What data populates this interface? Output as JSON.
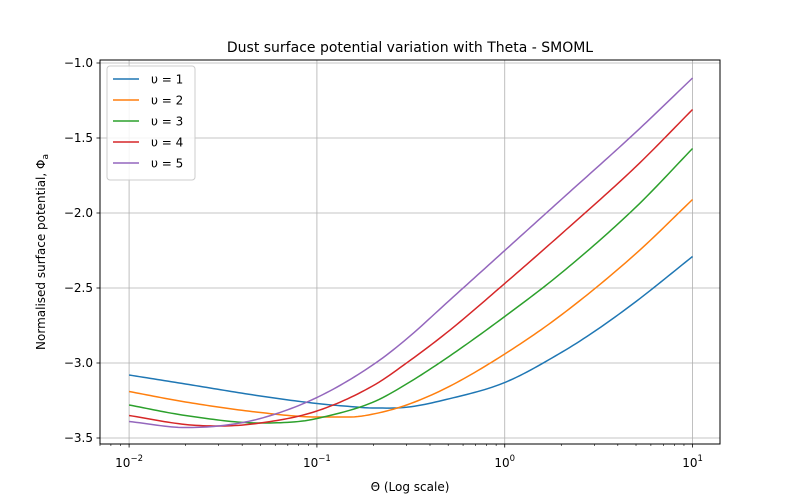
{
  "chart_data": {
    "type": "line",
    "title": "Dust surface potential variation with Theta - SMOML",
    "xlabel": "Θ (Log scale)",
    "ylabel": "Normalised surface potential, Φ",
    "ylabel_subscript": "a",
    "xscale": "log",
    "xlim": [
      0.007,
      14
    ],
    "ylim": [
      -3.54,
      -0.98
    ],
    "xticks": [
      {
        "value": 0.01,
        "base": "10",
        "exp": "−2"
      },
      {
        "value": 0.1,
        "base": "10",
        "exp": "−1"
      },
      {
        "value": 1,
        "base": "10",
        "exp": "0"
      },
      {
        "value": 10,
        "base": "10",
        "exp": "1"
      }
    ],
    "yticks": [
      -3.5,
      -3.0,
      -2.5,
      -2.0,
      -1.5,
      -1.0
    ],
    "ytick_labels": [
      "−3.5",
      "−3.0",
      "−2.5",
      "−2.0",
      "−1.5",
      "−1.0"
    ],
    "grid": true,
    "legend_position": "top-left",
    "series": [
      {
        "name": "υ = 1",
        "color": "#1f77b4",
        "x": [
          0.01,
          0.02,
          0.05,
          0.1,
          0.15,
          0.2,
          0.3,
          0.5,
          1,
          2,
          3,
          5,
          10
        ],
        "y": [
          -3.08,
          -3.14,
          -3.22,
          -3.27,
          -3.29,
          -3.3,
          -3.295,
          -3.24,
          -3.13,
          -2.93,
          -2.79,
          -2.59,
          -2.29
        ]
      },
      {
        "name": "υ = 2",
        "color": "#ff7f0e",
        "x": [
          0.01,
          0.02,
          0.05,
          0.1,
          0.15,
          0.2,
          0.3,
          0.5,
          1,
          2,
          5,
          10
        ],
        "y": [
          -3.19,
          -3.26,
          -3.33,
          -3.36,
          -3.36,
          -3.34,
          -3.28,
          -3.16,
          -2.94,
          -2.68,
          -2.27,
          -1.91
        ]
      },
      {
        "name": "υ = 3",
        "color": "#2ca02c",
        "x": [
          0.01,
          0.02,
          0.05,
          0.08,
          0.1,
          0.2,
          0.3,
          0.5,
          1,
          2,
          5,
          10
        ],
        "y": [
          -3.28,
          -3.35,
          -3.4,
          -3.39,
          -3.37,
          -3.26,
          -3.14,
          -2.96,
          -2.69,
          -2.4,
          -1.96,
          -1.57
        ]
      },
      {
        "name": "υ = 4",
        "color": "#d62728",
        "x": [
          0.01,
          0.02,
          0.03,
          0.05,
          0.1,
          0.2,
          0.3,
          0.5,
          1,
          2,
          5,
          10
        ],
        "y": [
          -3.35,
          -3.41,
          -3.42,
          -3.4,
          -3.32,
          -3.15,
          -3.0,
          -2.79,
          -2.47,
          -2.14,
          -1.69,
          -1.31
        ]
      },
      {
        "name": "υ = 5",
        "color": "#9467bd",
        "x": [
          0.01,
          0.02,
          0.03,
          0.05,
          0.1,
          0.2,
          0.3,
          0.5,
          1,
          2,
          5,
          10
        ],
        "y": [
          -3.39,
          -3.43,
          -3.42,
          -3.37,
          -3.23,
          -3.01,
          -2.84,
          -2.59,
          -2.25,
          -1.91,
          -1.46,
          -1.1
        ]
      }
    ]
  }
}
